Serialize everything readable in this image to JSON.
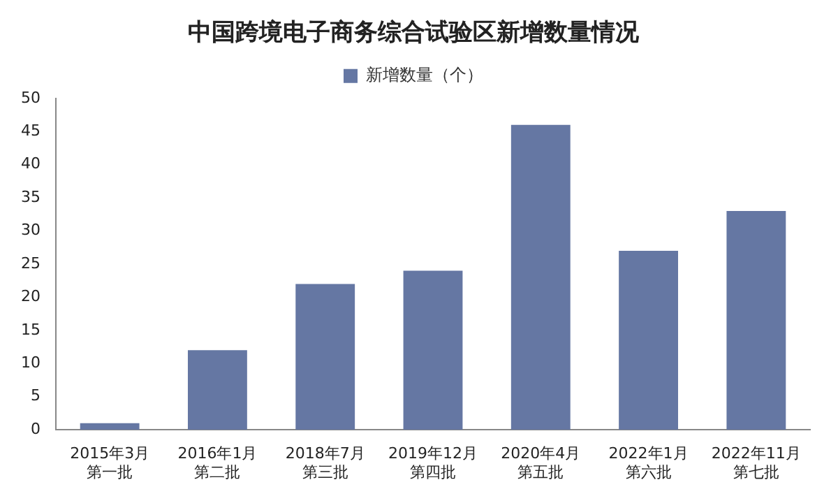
{
  "chart_data": {
    "type": "bar",
    "title": "中国跨境电子商务综合试验区新增数量情况",
    "categories": [
      "2015年3月第一批",
      "2016年1月第二批",
      "2018年7月第三批",
      "2019年12月第四批",
      "2020年4月第五批",
      "2022年1月第六批",
      "2022年11月第七批"
    ],
    "series": [
      {
        "name": "新增数量（个）",
        "color": "#6577a3",
        "values": [
          1,
          12,
          22,
          24,
          46,
          27,
          33
        ]
      }
    ],
    "ylim": [
      0,
      50
    ],
    "yticks": [
      0,
      5,
      10,
      15,
      20,
      25,
      30,
      35,
      40,
      45,
      50
    ],
    "grid": false,
    "legend": "top"
  }
}
